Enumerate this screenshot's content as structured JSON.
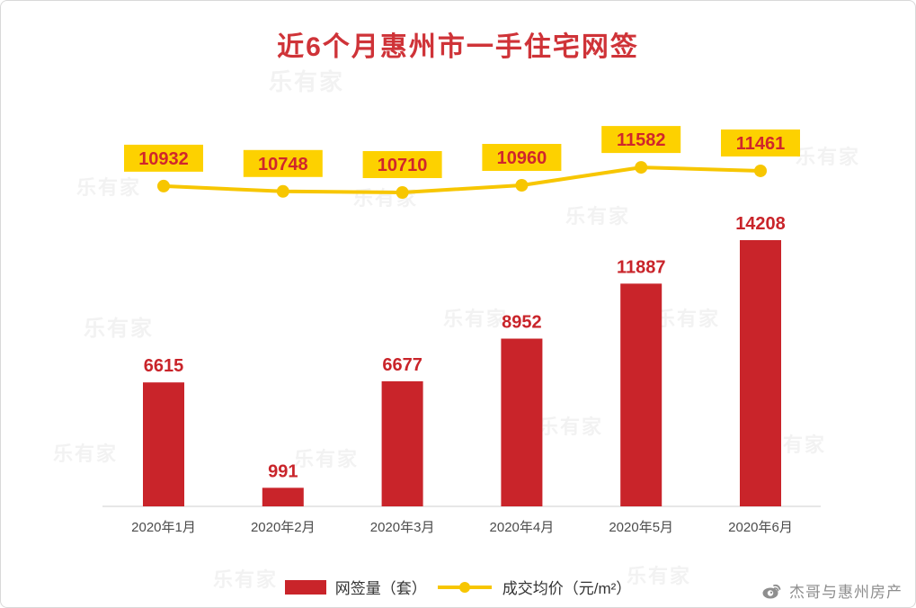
{
  "title": "近6个月惠州市一手住宅网签",
  "watermark": {
    "text": "乐有家"
  },
  "legend": {
    "bar_label": "网签量（套）",
    "line_label": "成交均价（元/m²）"
  },
  "footer": {
    "source_label": "杰哥与惠州房产"
  },
  "colors": {
    "bar_red": "#c9242a",
    "line_yellow": "#f7c600",
    "price_label_bg": "#fdd100",
    "title_red": "#cf3338"
  },
  "chart_data": {
    "type": "bar",
    "title": "近6个月惠州市一手住宅网签",
    "categories": [
      "2020年1月",
      "2020年2月",
      "2020年3月",
      "2020年4月",
      "2020年5月",
      "2020年6月"
    ],
    "series": [
      {
        "name": "网签量（套）",
        "type": "bar",
        "color": "#c9242a",
        "values": [
          6615,
          991,
          6677,
          8952,
          11887,
          14208
        ]
      },
      {
        "name": "成交均价（元/m²）",
        "type": "line",
        "color": "#f7c600",
        "values": [
          10932,
          10748,
          10710,
          10960,
          11582,
          11461
        ]
      }
    ],
    "legend_position": "bottom",
    "grid": false,
    "x_axis_baseline_color": "#cfcfcf"
  }
}
